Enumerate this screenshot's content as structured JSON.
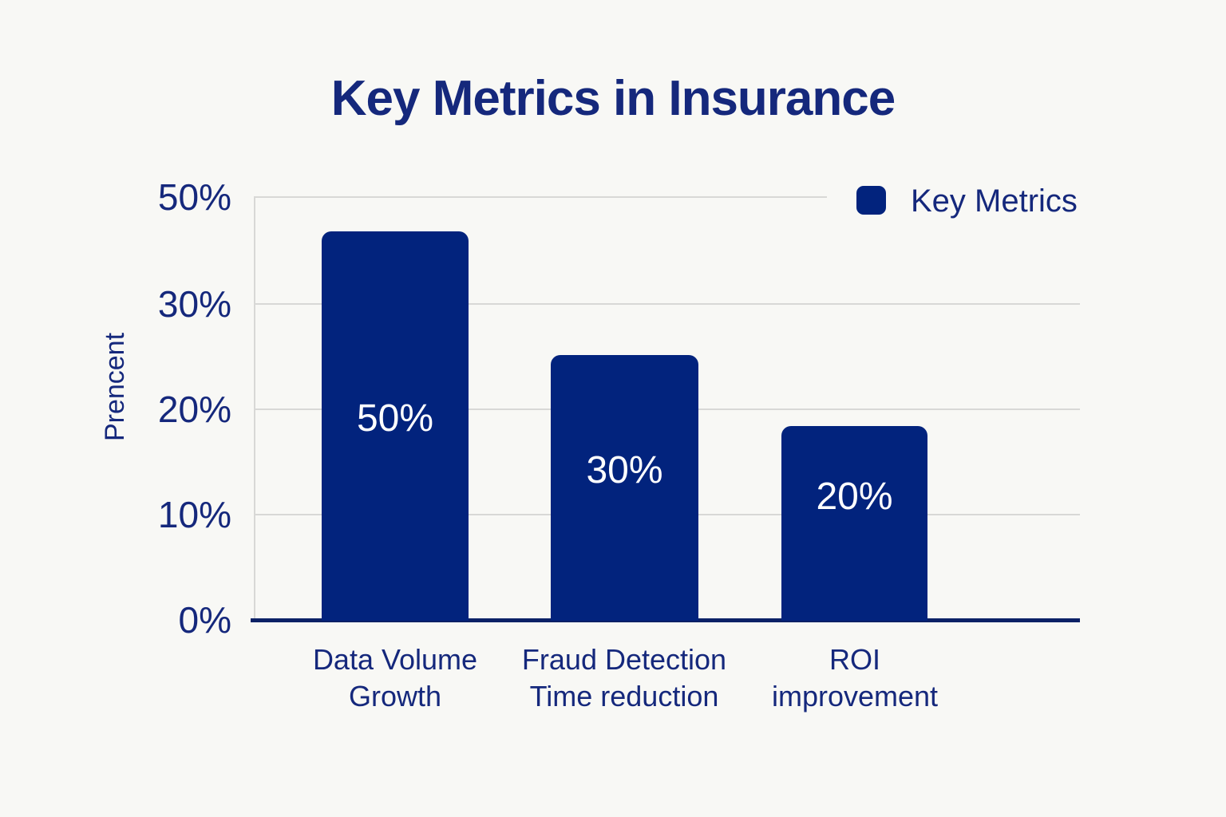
{
  "title": "Key Metrics in Insurance",
  "legend": {
    "label": "Key Metrics",
    "swatch_color": "#02237d"
  },
  "y_axis": {
    "label": "Prencent",
    "ticks": [
      "50%",
      "30%",
      "20%",
      "10%",
      "0%"
    ]
  },
  "x_axis": {
    "categories": [
      [
        "Data Volume",
        "Growth"
      ],
      [
        "Fraud Detection",
        "Time reduction"
      ],
      [
        "ROI",
        "improvement"
      ]
    ]
  },
  "bars": [
    {
      "category": "Data Volume Growth",
      "value_label": "50%"
    },
    {
      "category": "Fraud Detection Time reduction",
      "value_label": "30%"
    },
    {
      "category": "ROI improvement",
      "value_label": "20%"
    }
  ],
  "colors": {
    "background": "#f8f8f5",
    "bar": "#02237d",
    "text_navy": "#15287c",
    "axis_line": "#0c2166",
    "gridline": "#d8d8d6",
    "bar_value_text": "#ffffff"
  },
  "chart_data": {
    "type": "bar",
    "title": "Key Metrics in Insurance",
    "categories": [
      "Data Volume Growth",
      "Fraud Detection Time reduction",
      "ROI improvement"
    ],
    "series": [
      {
        "name": "Key Metrics",
        "values": [
          50,
          30,
          20
        ]
      }
    ],
    "data_labels": [
      "50%",
      "30%",
      "20%"
    ],
    "xlabel": "",
    "ylabel": "Prencent",
    "y_tick_labels_shown": [
      "0%",
      "10%",
      "20%",
      "30%",
      "50%"
    ],
    "y_ticks_evenly_spaced": true,
    "grid": "horizontal",
    "legend_position": "top-right",
    "bar_color": "#02237d"
  }
}
